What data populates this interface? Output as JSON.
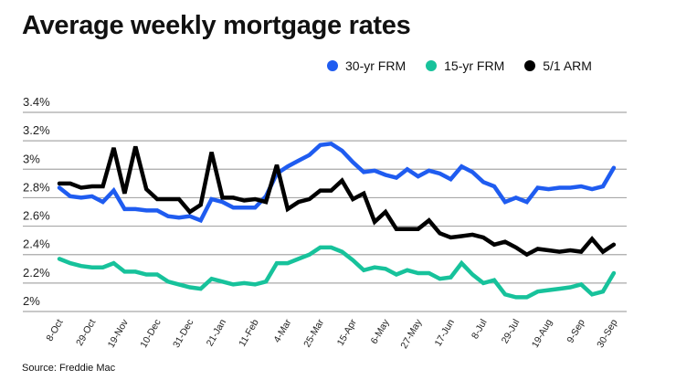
{
  "title": "Average weekly mortgage rates",
  "source": "Source: Freddie Mac",
  "chart_data": {
    "type": "line",
    "title": "Average weekly mortgage rates",
    "xlabel": "",
    "ylabel": "",
    "ylim": [
      2.0,
      3.4
    ],
    "yticks": [
      "2%",
      "2.2%",
      "2.4%",
      "2.6%",
      "2.8%",
      "3%",
      "3.2%",
      "3.4%"
    ],
    "ytick_values": [
      2.0,
      2.2,
      2.4,
      2.6,
      2.8,
      3.0,
      3.2,
      3.4
    ],
    "xtick_labels": [
      "8-Oct",
      "29-Oct",
      "19-Nov",
      "10-Dec",
      "31-Dec",
      "21-Jan",
      "11-Feb",
      "4-Mar",
      "25-Mar",
      "15-Apr",
      "6-May",
      "27-May",
      "17-Jun",
      "8-Jul",
      "29-Jul",
      "19-Aug",
      "9-Sep",
      "30-Sep"
    ],
    "xtick_every_n_points": 3,
    "grid": "horizontal",
    "legend": "top-right",
    "series": [
      {
        "name": "30-yr FRM",
        "color": "#1f5cf0",
        "values": [
          2.87,
          2.81,
          2.8,
          2.81,
          2.77,
          2.85,
          2.72,
          2.72,
          2.71,
          2.71,
          2.67,
          2.66,
          2.67,
          2.64,
          2.79,
          2.77,
          2.73,
          2.73,
          2.73,
          2.81,
          2.97,
          3.02,
          3.06,
          3.1,
          3.17,
          3.18,
          3.13,
          3.05,
          2.98,
          2.99,
          2.96,
          2.94,
          3.0,
          2.95,
          2.99,
          2.97,
          2.93,
          3.02,
          2.98,
          2.91,
          2.88,
          2.77,
          2.8,
          2.77,
          2.87,
          2.86,
          2.87,
          2.87,
          2.88,
          2.86,
          2.88,
          3.01
        ]
      },
      {
        "name": "15-yr FRM",
        "color": "#17c29b",
        "values": [
          2.37,
          2.34,
          2.32,
          2.31,
          2.31,
          2.34,
          2.28,
          2.28,
          2.26,
          2.26,
          2.21,
          2.19,
          2.17,
          2.16,
          2.23,
          2.21,
          2.19,
          2.2,
          2.19,
          2.21,
          2.34,
          2.34,
          2.37,
          2.4,
          2.45,
          2.45,
          2.42,
          2.36,
          2.29,
          2.31,
          2.3,
          2.26,
          2.29,
          2.27,
          2.27,
          2.23,
          2.24,
          2.34,
          2.26,
          2.2,
          2.22,
          2.12,
          2.1,
          2.1,
          2.14,
          2.15,
          2.16,
          2.17,
          2.19,
          2.12,
          2.14,
          2.27
        ]
      },
      {
        "name": "5/1 ARM",
        "color": "#000000",
        "values": [
          2.9,
          2.9,
          2.87,
          2.88,
          2.88,
          3.15,
          2.83,
          3.16,
          2.86,
          2.79,
          2.79,
          2.79,
          2.7,
          2.75,
          3.12,
          2.8,
          2.8,
          2.78,
          2.79,
          2.77,
          3.03,
          2.72,
          2.77,
          2.79,
          2.85,
          2.85,
          2.92,
          2.79,
          2.83,
          2.63,
          2.7,
          2.58,
          2.58,
          2.58,
          2.64,
          2.55,
          2.52,
          2.53,
          2.54,
          2.52,
          2.47,
          2.49,
          2.45,
          2.4,
          2.44,
          2.43,
          2.42,
          2.43,
          2.42,
          2.51,
          2.42,
          2.47
        ]
      }
    ]
  }
}
